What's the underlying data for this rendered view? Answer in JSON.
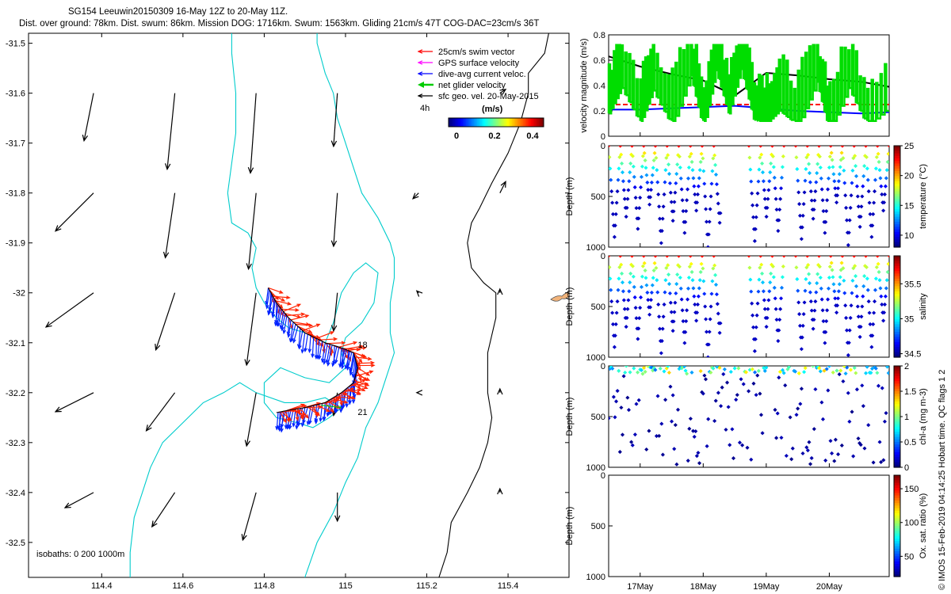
{
  "header": {
    "title_line": "SG154 Leeuwin20150309 16-May 12Z to 20-May 11Z.",
    "stats_line": "Dist. over ground: 78km. Dist. swum: 86km. Mission DOG: 1716km. Swum: 1563km. Gliding 21cm/s 47T COG-DAC=23cm/s 36T"
  },
  "map": {
    "legend": [
      {
        "label": "25cm/s swim vector",
        "color": "#ff0000"
      },
      {
        "label": "GPS surface velocity",
        "color": "#ff00ff"
      },
      {
        "label": "dive-avg current veloc.",
        "color": "#0000ff"
      },
      {
        "label": "net glider velocity",
        "color": "#00cc00"
      },
      {
        "label": "sfc geo. vel. 20-May-2015",
        "color": "#000000"
      }
    ],
    "interval_label": "4h",
    "colorbar": {
      "title": "(m/s)",
      "ticks": [
        "0",
        "0.2",
        "0.4"
      ],
      "min": 0,
      "max": 0.5
    },
    "isobaths_label": "isobaths: 0   200  1000m",
    "day_labels": [
      {
        "text": "18",
        "lon": 115.03,
        "lat": -32.11
      },
      {
        "text": "21",
        "lon": 115.03,
        "lat": -32.245
      }
    ]
  },
  "chart_data": [
    {
      "type": "map",
      "name": "glider-track-map",
      "xlim": [
        114.22,
        115.55
      ],
      "ylim": [
        -32.57,
        -31.48
      ],
      "xticks": [
        "114.4",
        "114.6",
        "114.8",
        "115",
        "115.2",
        "115.4"
      ],
      "xtick_values": [
        114.4,
        114.6,
        114.8,
        115.0,
        115.2,
        115.4
      ],
      "yticks": [
        "-31.5",
        "-31.6",
        "-31.7",
        "-31.8",
        "-31.9",
        "-32",
        "-32.1",
        "-32.2",
        "-32.3",
        "-32.4",
        "-32.5"
      ],
      "ytick_values": [
        -31.5,
        -31.6,
        -31.7,
        -31.8,
        -31.9,
        -32.0,
        -32.1,
        -32.2,
        -32.3,
        -32.4,
        -32.5
      ],
      "coastline": [
        [
          115.5,
          -31.48
        ],
        [
          115.49,
          -31.52
        ],
        [
          115.45,
          -31.56
        ],
        [
          115.45,
          -31.6
        ],
        [
          115.43,
          -31.66
        ],
        [
          115.4,
          -31.72
        ],
        [
          115.36,
          -31.78
        ],
        [
          115.33,
          -31.83
        ],
        [
          115.31,
          -31.86
        ],
        [
          115.3,
          -31.9
        ],
        [
          115.31,
          -31.95
        ],
        [
          115.34,
          -31.98
        ],
        [
          115.37,
          -32.0
        ],
        [
          115.37,
          -32.05
        ],
        [
          115.35,
          -32.12
        ],
        [
          115.35,
          -32.2
        ],
        [
          115.36,
          -32.25
        ],
        [
          115.35,
          -32.3
        ],
        [
          115.33,
          -32.35
        ],
        [
          115.3,
          -32.4
        ],
        [
          115.26,
          -32.46
        ],
        [
          115.25,
          -32.52
        ],
        [
          115.23,
          -32.57
        ]
      ],
      "isobath_200": [
        [
          114.93,
          -31.48
        ],
        [
          114.93,
          -31.5
        ],
        [
          114.95,
          -31.56
        ],
        [
          114.97,
          -31.6
        ],
        [
          114.98,
          -31.65
        ],
        [
          115.0,
          -31.7
        ],
        [
          115.02,
          -31.75
        ],
        [
          115.04,
          -31.8
        ],
        [
          115.08,
          -31.85
        ],
        [
          115.11,
          -31.9
        ],
        [
          115.12,
          -31.93
        ],
        [
          115.12,
          -31.97
        ],
        [
          115.11,
          -32.02
        ],
        [
          115.11,
          -32.08
        ],
        [
          115.12,
          -32.12
        ],
        [
          115.1,
          -32.17
        ],
        [
          115.08,
          -32.22
        ],
        [
          115.05,
          -32.27
        ],
        [
          115.03,
          -32.33
        ],
        [
          115.0,
          -32.38
        ],
        [
          114.97,
          -32.44
        ],
        [
          114.93,
          -32.5
        ],
        [
          114.9,
          -32.57
        ]
      ],
      "isobath_1000": [
        [
          114.72,
          -31.48
        ],
        [
          114.72,
          -31.52
        ],
        [
          114.73,
          -31.6
        ],
        [
          114.73,
          -31.68
        ],
        [
          114.72,
          -31.74
        ],
        [
          114.71,
          -31.8
        ],
        [
          114.72,
          -31.86
        ],
        [
          114.76,
          -31.88
        ],
        [
          114.78,
          -31.91
        ],
        [
          114.77,
          -31.95
        ],
        [
          114.78,
          -31.99
        ],
        [
          114.8,
          -32.02
        ],
        [
          114.83,
          -32.05
        ],
        [
          114.86,
          -32.07
        ],
        [
          114.9,
          -32.08
        ],
        [
          114.95,
          -32.1
        ],
        [
          114.97,
          -32.06
        ],
        [
          114.99,
          -32.0
        ],
        [
          115.02,
          -31.96
        ],
        [
          115.05,
          -31.94
        ],
        [
          115.08,
          -31.96
        ],
        [
          115.07,
          -32.02
        ],
        [
          115.04,
          -32.06
        ],
        [
          115.0,
          -32.09
        ],
        [
          114.99,
          -32.12
        ],
        [
          115.0,
          -32.15
        ],
        [
          114.96,
          -32.18
        ],
        [
          114.9,
          -32.17
        ],
        [
          114.84,
          -32.15
        ],
        [
          114.8,
          -32.18
        ],
        [
          114.8,
          -32.22
        ],
        [
          114.83,
          -32.25
        ],
        [
          114.88,
          -32.26
        ],
        [
          114.92,
          -32.27
        ],
        [
          114.96,
          -32.25
        ],
        [
          114.99,
          -32.23
        ],
        [
          114.95,
          -32.21
        ],
        [
          114.9,
          -32.22
        ],
        [
          114.85,
          -32.22
        ],
        [
          114.78,
          -32.2
        ],
        [
          114.74,
          -32.18
        ],
        [
          114.7,
          -32.2
        ],
        [
          114.65,
          -32.22
        ],
        [
          114.6,
          -32.26
        ],
        [
          114.55,
          -32.3
        ],
        [
          114.52,
          -32.35
        ],
        [
          114.5,
          -32.4
        ],
        [
          114.48,
          -32.45
        ],
        [
          114.47,
          -32.52
        ],
        [
          114.47,
          -32.57
        ]
      ],
      "glider_track": [
        [
          114.81,
          -31.99
        ],
        [
          114.83,
          -32.02
        ],
        [
          114.86,
          -32.05
        ],
        [
          114.9,
          -32.08
        ],
        [
          114.95,
          -32.1
        ],
        [
          114.99,
          -32.11
        ],
        [
          115.02,
          -32.12
        ],
        [
          115.03,
          -32.15
        ],
        [
          115.02,
          -32.18
        ],
        [
          114.99,
          -32.2
        ],
        [
          114.95,
          -32.22
        ],
        [
          114.9,
          -32.23
        ],
        [
          114.86,
          -32.235
        ],
        [
          114.83,
          -32.24
        ]
      ],
      "geo_vectors": [
        {
          "lon": 114.38,
          "lat": -31.6,
          "u": -0.05,
          "v": -0.25
        },
        {
          "lon": 114.58,
          "lat": -31.6,
          "u": -0.04,
          "v": -0.4
        },
        {
          "lon": 114.78,
          "lat": -31.6,
          "u": -0.03,
          "v": -0.42
        },
        {
          "lon": 114.98,
          "lat": -31.6,
          "u": -0.02,
          "v": -0.28
        },
        {
          "lon": 115.18,
          "lat": -31.6,
          "u": 0.0,
          "v": 0.0
        },
        {
          "lon": 115.38,
          "lat": -31.6,
          "u": 0.03,
          "v": 0.02
        },
        {
          "lon": 114.38,
          "lat": -31.8,
          "u": -0.2,
          "v": -0.2
        },
        {
          "lon": 114.58,
          "lat": -31.8,
          "u": -0.05,
          "v": -0.34
        },
        {
          "lon": 114.78,
          "lat": -31.8,
          "u": -0.04,
          "v": -0.4
        },
        {
          "lon": 114.98,
          "lat": -31.8,
          "u": -0.02,
          "v": -0.28
        },
        {
          "lon": 115.18,
          "lat": -31.8,
          "u": -0.03,
          "v": -0.03
        },
        {
          "lon": 115.38,
          "lat": -31.8,
          "u": 0.03,
          "v": 0.06
        },
        {
          "lon": 114.38,
          "lat": -32.0,
          "u": -0.25,
          "v": -0.18
        },
        {
          "lon": 114.58,
          "lat": -32.0,
          "u": -0.1,
          "v": -0.3
        },
        {
          "lon": 114.78,
          "lat": -32.0,
          "u": -0.05,
          "v": -0.38
        },
        {
          "lon": 114.98,
          "lat": -32.0,
          "u": -0.02,
          "v": -0.2
        },
        {
          "lon": 115.18,
          "lat": -32.0,
          "u": -0.01,
          "v": 0.01
        },
        {
          "lon": 115.38,
          "lat": -32.0,
          "u": 0.0,
          "v": 0.02
        },
        {
          "lon": 114.38,
          "lat": -32.2,
          "u": -0.2,
          "v": -0.1
        },
        {
          "lon": 114.58,
          "lat": -32.2,
          "u": -0.15,
          "v": -0.2
        },
        {
          "lon": 114.78,
          "lat": -32.2,
          "u": -0.05,
          "v": -0.28
        },
        {
          "lon": 114.98,
          "lat": -32.2,
          "u": -0.02,
          "v": -0.12
        },
        {
          "lon": 115.18,
          "lat": -32.2,
          "u": -0.01,
          "v": 0.0
        },
        {
          "lon": 115.38,
          "lat": -32.2,
          "u": 0.0,
          "v": 0.02
        },
        {
          "lon": 114.38,
          "lat": -32.4,
          "u": -0.15,
          "v": -0.08
        },
        {
          "lon": 114.58,
          "lat": -32.4,
          "u": -0.12,
          "v": -0.18
        },
        {
          "lon": 114.78,
          "lat": -32.4,
          "u": -0.07,
          "v": -0.25
        },
        {
          "lon": 114.98,
          "lat": -32.4,
          "u": 0.0,
          "v": -0.15
        },
        {
          "lon": 115.18,
          "lat": -32.4,
          "u": 0.0,
          "v": 0.0
        },
        {
          "lon": 115.38,
          "lat": -32.4,
          "u": 0.0,
          "v": 0.02
        }
      ]
    },
    {
      "type": "line",
      "name": "velocity-magnitude",
      "ylabel": "velocity magnitude (m/s)",
      "ylim": [
        0,
        0.8
      ],
      "yticks": [
        "0",
        "0.2",
        "0.4",
        "0.6",
        "0.8"
      ],
      "ytick_values": [
        0,
        0.2,
        0.4,
        0.6,
        0.8
      ],
      "xlim": [
        16.5,
        20.95
      ],
      "series": [
        {
          "name": "sfc geo. vel.",
          "color": "#000000",
          "x": [
            16.5,
            17.0,
            17.5,
            18.0,
            18.5,
            19.0,
            19.5,
            20.0,
            20.5,
            20.95
          ],
          "values": [
            0.63,
            0.55,
            0.49,
            0.44,
            0.32,
            0.5,
            0.48,
            0.45,
            0.43,
            0.39
          ]
        },
        {
          "name": "25cm/s swim vector",
          "color": "#ff0000",
          "x": [
            16.5,
            20.95
          ],
          "values": [
            0.25,
            0.25
          ]
        },
        {
          "name": "dive-avg current veloc.",
          "color": "#0000ff",
          "x": [
            16.5,
            17.0,
            17.5,
            18.0,
            18.5,
            19.0,
            19.5,
            20.0,
            20.5,
            20.95
          ],
          "values": [
            0.21,
            0.21,
            0.22,
            0.23,
            0.24,
            0.22,
            0.2,
            0.19,
            0.18,
            0.19
          ]
        },
        {
          "name": "net glider velocity",
          "color": "#00dd00",
          "x": [
            16.5,
            16.7,
            17.0,
            17.2,
            17.5,
            17.8,
            18.0,
            18.2,
            18.4,
            18.6,
            18.8,
            19.0,
            19.2,
            19.5,
            19.8,
            20.0,
            20.3,
            20.6,
            20.95
          ],
          "values": [
            0.3,
            0.5,
            0.22,
            0.48,
            0.2,
            0.6,
            0.18,
            0.64,
            0.3,
            0.65,
            0.25,
            0.22,
            0.32,
            0.2,
            0.55,
            0.15,
            0.5,
            0.2,
            0.35
          ]
        }
      ]
    },
    {
      "type": "scatter",
      "name": "temperature-section",
      "ylabel": "Depth (m)",
      "ylim": [
        1000,
        0
      ],
      "yticks": [
        "0",
        "500",
        "1000"
      ],
      "ytick_values": [
        0,
        500,
        1000
      ],
      "colorbar_label": "temperature (°C)",
      "colorbar_ticks": [
        "10",
        "15",
        "20",
        "25"
      ],
      "colorbar_values": [
        10,
        15,
        20,
        25
      ],
      "crange": [
        8,
        25
      ],
      "gaps": [
        [
          18.28,
          18.7
        ],
        [
          19.35,
          19.42
        ]
      ],
      "surface_value": 23,
      "deep_value": 9,
      "max_depths": [
        900,
        700,
        820,
        580,
        960,
        740,
        860,
        640,
        1000,
        760,
        880,
        620,
        940,
        700,
        840,
        600,
        920,
        720,
        860,
        560,
        980,
        800,
        900,
        640
      ]
    },
    {
      "type": "scatter",
      "name": "salinity-section",
      "ylabel": "Depth (m)",
      "ylim": [
        1000,
        0
      ],
      "yticks": [
        "0",
        "500",
        "1000"
      ],
      "ytick_values": [
        0,
        500,
        1000
      ],
      "colorbar_label": "salinity",
      "colorbar_ticks": [
        "34.5",
        "35",
        "35.5"
      ],
      "colorbar_values": [
        34.5,
        35,
        35.5
      ],
      "crange": [
        34.45,
        35.9
      ],
      "gaps": [
        [
          18.28,
          18.7
        ],
        [
          19.35,
          19.42
        ]
      ],
      "surface_value": 35.7,
      "deep_value": 34.55,
      "max_depths": [
        900,
        700,
        820,
        580,
        960,
        740,
        860,
        640,
        1000,
        760,
        880,
        620,
        940,
        700,
        840,
        600,
        920,
        720,
        860,
        560,
        980,
        800,
        900,
        640
      ]
    },
    {
      "type": "scatter",
      "name": "chlorophyll-section",
      "ylabel": "Depth (m)",
      "ylim": [
        1000,
        0
      ],
      "yticks": [
        "0",
        "500",
        "1000"
      ],
      "ytick_values": [
        0,
        500,
        1000
      ],
      "colorbar_label": "chl-a (mg m-3)",
      "colorbar_ticks": [
        "0",
        "0.5",
        "1",
        "1.5",
        "2"
      ],
      "colorbar_values": [
        0,
        0.5,
        1,
        1.5,
        2
      ],
      "crange": [
        0,
        2
      ],
      "gaps": [
        [
          19.0,
          19.12
        ]
      ],
      "surface_value": 0.9,
      "deep_value": 0.02
    },
    {
      "type": "scatter",
      "name": "oxygen-section",
      "ylabel": "Depth (m)",
      "ylim": [
        1000,
        0
      ],
      "yticks": [
        "0",
        "500",
        "1000"
      ],
      "ytick_values": [
        0,
        500,
        1000
      ],
      "colorbar_label": "Ox. sat. ratio (%)",
      "colorbar_ticks": [
        "50",
        "100",
        "150"
      ],
      "colorbar_values": [
        50,
        100,
        150
      ],
      "crange": [
        20,
        170
      ],
      "values": []
    }
  ],
  "time_axis": {
    "xlim": [
      16.5,
      20.95
    ],
    "ticks": [
      "17May",
      "18May",
      "19May",
      "20May"
    ],
    "tick_values": [
      17,
      18,
      19,
      20
    ]
  },
  "footer": {
    "credit": "© IMOS 15-Feb-2019 04:14:25 Hobart time. QC flags 1  2"
  }
}
